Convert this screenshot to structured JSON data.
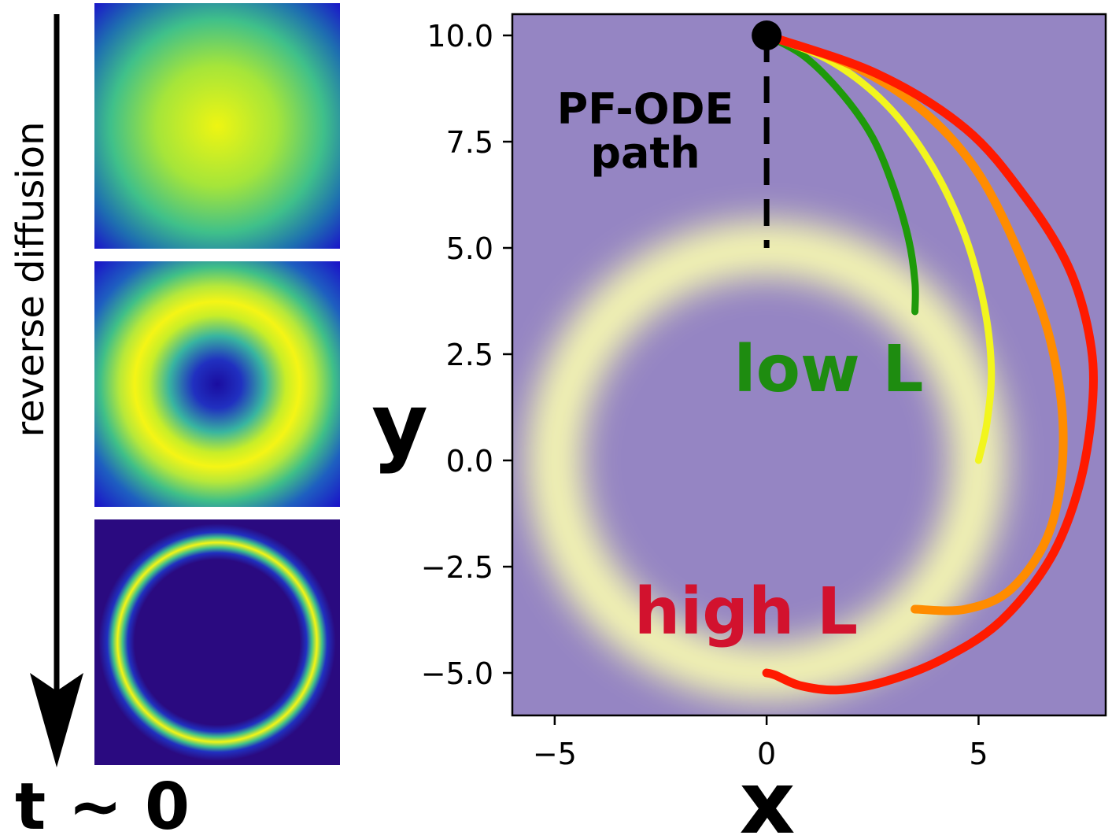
{
  "left_panel": {
    "arrow_label": "reverse diffusion",
    "time_label": "t ~ 0",
    "panels": [
      {
        "name": "early",
        "description_level": "broad blob"
      },
      {
        "name": "middle",
        "description_level": "wide ring"
      },
      {
        "name": "late",
        "description_level": "thin ring"
      }
    ]
  },
  "annotations": {
    "pf_ode_line1": "PF-ODE",
    "pf_ode_line2": "path",
    "low_l": "low L",
    "high_l": "high L"
  },
  "colors": {
    "background_fill": "#9585C3",
    "ring_highlight": "#FAFDB0",
    "low_l": "#1E8C10",
    "high_l": "#D2122E",
    "green_path": "#1E9A0A",
    "yellow_path": "#F2F51E",
    "orange_path": "#FF8C00",
    "red_path": "#FF1A00"
  },
  "chart_data": {
    "type": "line",
    "xlabel": "x",
    "ylabel": "y",
    "xlim": [
      -6.0,
      8.0
    ],
    "ylim": [
      -6.0,
      10.5
    ],
    "xticks": [
      -5,
      0,
      5
    ],
    "xtick_labels": [
      "−5",
      "0",
      "5"
    ],
    "yticks": [
      10.0,
      7.5,
      5.0,
      2.5,
      0.0,
      -2.5,
      -5.0
    ],
    "ytick_labels": [
      "10.0",
      "7.5",
      "5.0",
      "2.5",
      "0.0",
      "−2.5",
      "−5.0"
    ],
    "background_density": {
      "shape": "ring",
      "radius": 5.0,
      "center": [
        0.0,
        0.0
      ]
    },
    "start_point": {
      "x": 0.0,
      "y": 10.0
    },
    "pf_ode_path": {
      "x": [
        0.0,
        0.0
      ],
      "y": [
        10.0,
        5.0
      ],
      "style": "dashed"
    },
    "series": [
      {
        "name": "green",
        "x": [
          0.0,
          0.9,
          1.8,
          2.5,
          3.0,
          3.35,
          3.5,
          3.5
        ],
        "y": [
          10.0,
          9.5,
          8.6,
          7.6,
          6.4,
          5.2,
          4.2,
          3.5
        ]
      },
      {
        "name": "yellow",
        "x": [
          0.0,
          1.5,
          2.8,
          3.8,
          4.6,
          5.1,
          5.3,
          5.2,
          5.0
        ],
        "y": [
          10.0,
          9.4,
          8.4,
          7.1,
          5.5,
          3.8,
          2.2,
          0.9,
          0.0
        ]
      },
      {
        "name": "orange",
        "x": [
          0.0,
          2.0,
          3.6,
          4.9,
          5.9,
          6.7,
          7.0,
          6.7,
          5.8,
          4.7,
          3.5
        ],
        "y": [
          10.0,
          9.3,
          8.3,
          6.9,
          5.0,
          2.8,
          0.5,
          -1.6,
          -3.0,
          -3.5,
          -3.5
        ]
      },
      {
        "name": "red",
        "x": [
          0.0,
          2.6,
          4.7,
          6.1,
          7.1,
          7.6,
          7.7,
          7.4,
          6.7,
          5.5,
          4.1,
          2.8,
          1.7,
          0.8,
          0.2,
          0.0
        ],
        "y": [
          10.0,
          9.1,
          7.8,
          6.2,
          4.6,
          3.0,
          1.5,
          -0.5,
          -2.3,
          -3.8,
          -4.7,
          -5.2,
          -5.4,
          -5.3,
          -5.05,
          -5.0
        ]
      }
    ]
  }
}
